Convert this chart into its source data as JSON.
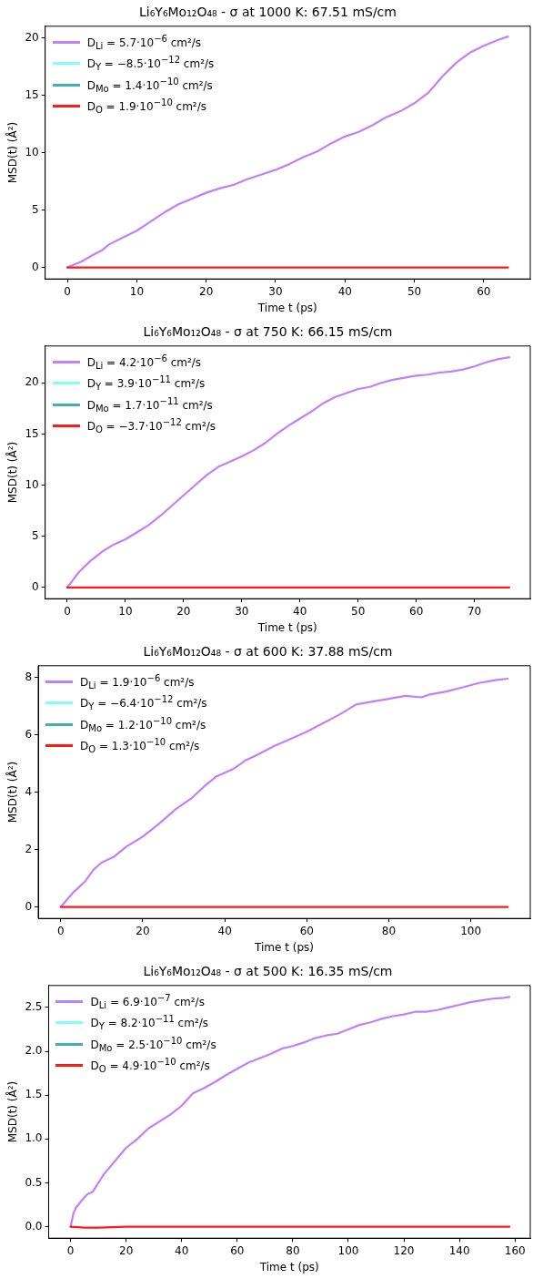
{
  "chart_data": [
    {
      "type": "line",
      "title": "Li₆Y₆Mo₁₂O₄₈ - σ at 1000 K: 67.51 mS/cm",
      "xlabel": "Time t (ps)",
      "ylabel": "MSD(t) (Å²)",
      "xlim": [
        -3.2,
        66.7
      ],
      "ylim": [
        -1,
        21
      ],
      "xticks": [
        0,
        10,
        20,
        30,
        40,
        50,
        60
      ],
      "yticks": [
        0,
        5,
        10,
        15,
        20
      ],
      "grid": false,
      "legend": "top left",
      "marker": "none",
      "line_style": "solid",
      "series": [
        {
          "name": "D$_{Li}$ = 5.7·10$^{−6}$ cm²/s",
          "color": "#bf80ff",
          "x": [
            0,
            2,
            4,
            5,
            6,
            8,
            10,
            12,
            14,
            16,
            18,
            20,
            22,
            24,
            26,
            28,
            30,
            32,
            34,
            36,
            38,
            40,
            42,
            44,
            46,
            48,
            50,
            52,
            54,
            56,
            58,
            60,
            62,
            63.5
          ],
          "values": [
            0,
            0.5,
            1.2,
            1.5,
            2,
            2.6,
            3.2,
            4,
            4.8,
            5.5,
            6,
            6.5,
            6.9,
            7.2,
            7.7,
            8.1,
            8.5,
            9,
            9.6,
            10.1,
            10.8,
            11.4,
            11.8,
            12.4,
            13.1,
            13.6,
            14.3,
            15.2,
            16.6,
            17.8,
            18.7,
            19.3,
            19.8,
            20.1
          ]
        },
        {
          "name": "D$_{Y}$ = −8.5·10$^{−12}$ cm²/s",
          "color": "#80ffff"
        },
        {
          "name": "D$_{Mo}$ = 1.4·10$^{−10}$ cm²/s",
          "color": "#40b0b0"
        },
        {
          "name": "D$_{O}$ = 1.9·10$^{−10}$ cm²/s",
          "color": "#ff1a1a",
          "x": [
            0,
            63.5
          ],
          "values": [
            0,
            0
          ]
        }
      ]
    },
    {
      "type": "line",
      "title": "Li₆Y₆Mo₁₂O₄₈ - σ at 750 K: 66.15 mS/cm",
      "xlabel": "Time t (ps)",
      "ylabel": "MSD(t) (Å²)",
      "xlim": [
        -3.8,
        79.6
      ],
      "ylim": [
        -1.1,
        23.6
      ],
      "xticks": [
        0,
        10,
        20,
        30,
        40,
        50,
        60,
        70
      ],
      "yticks": [
        0,
        5,
        10,
        15,
        20
      ],
      "grid": false,
      "legend": "top left",
      "marker": "none",
      "line_style": "solid",
      "series": [
        {
          "name": "D$_{Li}$ = 4.2·10$^{−6}$ cm²/s",
          "color": "#bf80ff",
          "x": [
            0,
            2,
            4,
            6,
            8,
            10,
            12,
            14,
            16,
            18,
            20,
            22,
            24,
            26,
            28,
            30,
            32,
            34,
            36,
            38,
            40,
            42,
            44,
            46,
            48,
            50,
            52,
            54,
            56,
            58,
            60,
            62,
            64,
            66,
            68,
            70,
            72,
            74,
            76
          ],
          "values": [
            0,
            1.5,
            2.6,
            3.5,
            4.2,
            4.7,
            5.4,
            6.1,
            7,
            8,
            9,
            10,
            11,
            11.8,
            12.3,
            12.8,
            13.4,
            14.1,
            15,
            15.8,
            16.5,
            17.2,
            18,
            18.6,
            19,
            19.4,
            19.6,
            20,
            20.3,
            20.5,
            20.7,
            20.8,
            21,
            21.1,
            21.3,
            21.6,
            22,
            22.3,
            22.5
          ]
        },
        {
          "name": "D$_{Y}$ = 3.9·10$^{−11}$ cm²/s",
          "color": "#80ffff"
        },
        {
          "name": "D$_{Mo}$ = 1.7·10$^{−11}$ cm²/s",
          "color": "#40b0b0"
        },
        {
          "name": "D$_{O}$ = −3.7·10$^{−12}$ cm²/s",
          "color": "#ff1a1a",
          "x": [
            0,
            76
          ],
          "values": [
            0,
            0
          ]
        }
      ]
    },
    {
      "type": "line",
      "title": "Li₆Y₆Mo₁₂O₄₈ - σ at 600 K: 37.88 mS/cm",
      "xlabel": "Time t (ps)",
      "ylabel": "MSD(t) (Å²)",
      "xlim": [
        -5.5,
        114.5
      ],
      "ylim": [
        -0.4,
        8.4
      ],
      "xticks": [
        0,
        20,
        40,
        60,
        80,
        100
      ],
      "yticks": [
        0,
        2,
        4,
        6,
        8
      ],
      "grid": false,
      "legend": "top left",
      "marker": "none",
      "line_style": "solid",
      "series": [
        {
          "name": "D$_{Li}$ = 1.9·10$^{−6}$ cm²/s",
          "color": "#bf80ff",
          "x": [
            0,
            3,
            6,
            8,
            10,
            13,
            16,
            20,
            24,
            28,
            32,
            35,
            38,
            42,
            45,
            48,
            52,
            56,
            60,
            64,
            68,
            72,
            76,
            80,
            84,
            88,
            90,
            94,
            98,
            102,
            106,
            109
          ],
          "values": [
            0,
            0.5,
            0.9,
            1.3,
            1.55,
            1.75,
            2.1,
            2.45,
            2.9,
            3.4,
            3.8,
            4.2,
            4.55,
            4.8,
            5.1,
            5.3,
            5.6,
            5.85,
            6.1,
            6.4,
            6.7,
            7.05,
            7.15,
            7.25,
            7.35,
            7.3,
            7.4,
            7.5,
            7.65,
            7.8,
            7.9,
            7.95
          ]
        },
        {
          "name": "D$_{Y}$ = −6.4·10$^{−12}$ cm²/s",
          "color": "#80ffff"
        },
        {
          "name": "D$_{Mo}$ = 1.2·10$^{−10}$ cm²/s",
          "color": "#40b0b0"
        },
        {
          "name": "D$_{O}$ = 1.3·10$^{−10}$ cm²/s",
          "color": "#ff1a1a",
          "x": [
            0,
            109
          ],
          "values": [
            0,
            0
          ]
        }
      ]
    },
    {
      "type": "line",
      "title": "Li₆Y₆Mo₁₂O₄₈ - σ at 500 K: 16.35 mS/cm",
      "xlabel": "Time t (ps)",
      "ylabel": "MSD(t) (Å²)",
      "xlim": [
        -7.9,
        165.5
      ],
      "ylim": [
        -0.13,
        2.75
      ],
      "xticks": [
        0,
        20,
        40,
        60,
        80,
        100,
        120,
        140,
        160
      ],
      "yticks": [
        {
          "value": 0,
          "label": "0.0"
        },
        {
          "value": 0.5,
          "label": "0.5"
        },
        {
          "value": 1,
          "label": "1.0"
        },
        {
          "value": 1.5,
          "label": "1.5"
        },
        {
          "value": 2,
          "label": "2.0"
        },
        {
          "value": 2.5,
          "label": "2.5"
        }
      ],
      "grid": false,
      "legend": "top left",
      "marker": "none",
      "line_style": "solid",
      "series": [
        {
          "name": "D$_{Li}$ = 6.9·10$^{−7}$ cm²/s",
          "color": "#bf80ff",
          "x": [
            0,
            1,
            2,
            4,
            6,
            8,
            10,
            12,
            16,
            20,
            24,
            28,
            32,
            36,
            40,
            44,
            48,
            52,
            56,
            60,
            64,
            68,
            72,
            76,
            80,
            84,
            88,
            92,
            96,
            100,
            104,
            108,
            112,
            116,
            120,
            124,
            128,
            132,
            136,
            140,
            144,
            148,
            152,
            156,
            158
          ],
          "values": [
            0,
            0.15,
            0.22,
            0.3,
            0.37,
            0.4,
            0.5,
            0.6,
            0.75,
            0.9,
            1,
            1.12,
            1.2,
            1.28,
            1.38,
            1.52,
            1.58,
            1.65,
            1.73,
            1.8,
            1.87,
            1.92,
            1.97,
            2.03,
            2.06,
            2.1,
            2.15,
            2.18,
            2.2,
            2.25,
            2.3,
            2.33,
            2.37,
            2.4,
            2.42,
            2.45,
            2.45,
            2.47,
            2.5,
            2.53,
            2.56,
            2.58,
            2.6,
            2.61,
            2.62
          ]
        },
        {
          "name": "D$_{Y}$ = 8.2·10$^{−11}$ cm²/s",
          "color": "#80ffff"
        },
        {
          "name": "D$_{Mo}$ = 2.5·10$^{−10}$ cm²/s",
          "color": "#40b0b0"
        },
        {
          "name": "D$_{O}$ = 4.9·10$^{−10}$ cm²/s",
          "color": "#ff1a1a",
          "x": [
            0,
            5,
            10,
            20,
            158
          ],
          "values": [
            0,
            -0.01,
            -0.01,
            0,
            0
          ]
        }
      ]
    }
  ]
}
